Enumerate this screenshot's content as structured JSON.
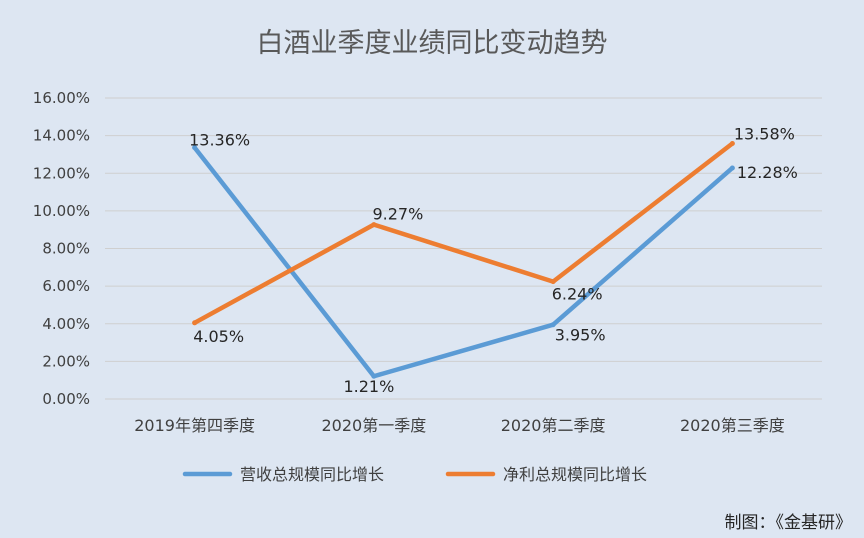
{
  "chart_data": {
    "type": "line",
    "title": "白酒业季度业绩同比变动趋势",
    "categories": [
      "2019年第四季度",
      "2020第一季度",
      "2020第二季度",
      "2020第三季度"
    ],
    "series": [
      {
        "name": "营收总规模同比增长",
        "color": "#5b9bd5",
        "values": [
          13.36,
          1.21,
          3.95,
          12.28
        ],
        "labels": [
          "13.36%",
          "1.21%",
          "3.95%",
          "12.28%"
        ]
      },
      {
        "name": "净利总规模同比增长",
        "color": "#ed7d31",
        "values": [
          4.05,
          9.27,
          6.24,
          13.58
        ],
        "labels": [
          "4.05%",
          "9.27%",
          "6.24%",
          "13.58%"
        ]
      }
    ],
    "ylim": [
      0,
      16
    ],
    "yticks": [
      "0.00%",
      "2.00%",
      "4.00%",
      "6.00%",
      "8.00%",
      "10.00%",
      "12.00%",
      "14.00%",
      "16.00%"
    ],
    "grid": true,
    "legend_position": "bottom",
    "xlabel": "",
    "ylabel": ""
  },
  "credit": "制图：《金基研》"
}
